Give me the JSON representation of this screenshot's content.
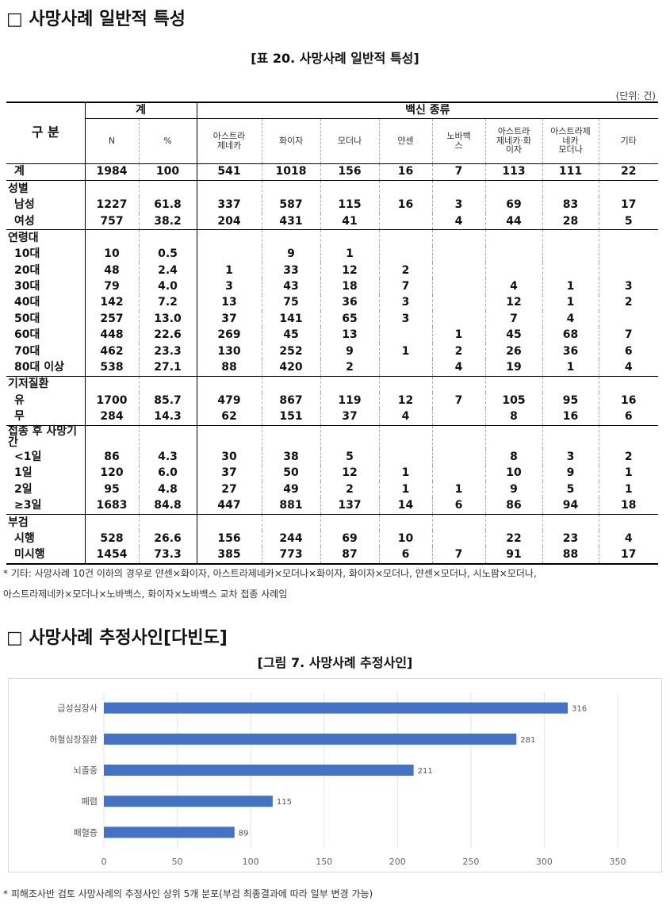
{
  "header": {
    "title": "□ 사망사례 일반적 특성",
    "caption": "[표 20. 사망사례 일반적 특성]",
    "unit": "(단위: 건)"
  },
  "table": {
    "head": {
      "group": "구 분",
      "total": "계",
      "vaccine": "백신 종류",
      "columns": [
        "N",
        "%",
        "아스트라\n제네카",
        "화이자",
        "모더나",
        "얀센",
        "노바백\n스",
        "아스트라\n제네카·화\n이자",
        "아스트라제\n네카\n모더나",
        "기타"
      ]
    },
    "rows": [
      {
        "label": "계",
        "cells": [
          "1984",
          "100",
          "541",
          "1018",
          "156",
          "16",
          "7",
          "113",
          "111",
          "22"
        ]
      },
      {
        "label": "성별"
      },
      {
        "label": "남성",
        "cells": [
          "1227",
          "61.8",
          "337",
          "587",
          "115",
          "16",
          "3",
          "69",
          "83",
          "17"
        ]
      },
      {
        "label": "여성",
        "cells": [
          "757",
          "38.2",
          "204",
          "431",
          "41",
          null,
          "4",
          "44",
          "28",
          "5"
        ]
      },
      {
        "label": "연령대"
      },
      {
        "label": "10대",
        "cells": [
          "10",
          "0.5",
          null,
          "9",
          "1",
          null,
          null,
          null,
          null,
          null
        ]
      },
      {
        "label": "20대",
        "cells": [
          "48",
          "2.4",
          "1",
          "33",
          "12",
          "2",
          null,
          null,
          null,
          null
        ]
      },
      {
        "label": "30대",
        "cells": [
          "79",
          "4.0",
          "3",
          "43",
          "18",
          "7",
          null,
          "4",
          "1",
          "3"
        ]
      },
      {
        "label": "40대",
        "cells": [
          "142",
          "7.2",
          "13",
          "75",
          "36",
          "3",
          null,
          "12",
          "1",
          "2"
        ]
      },
      {
        "label": "50대",
        "cells": [
          "257",
          "13.0",
          "37",
          "141",
          "65",
          "3",
          null,
          "7",
          "4",
          null
        ]
      },
      {
        "label": "60대",
        "cells": [
          "448",
          "22.6",
          "269",
          "45",
          "13",
          null,
          "1",
          "45",
          "68",
          "7"
        ]
      },
      {
        "label": "70대",
        "cells": [
          "462",
          "23.3",
          "130",
          "252",
          "9",
          "1",
          "2",
          "26",
          "36",
          "6"
        ]
      },
      {
        "label": "80대 이상",
        "cells": [
          "538",
          "27.1",
          "88",
          "420",
          "2",
          null,
          "4",
          "19",
          "1",
          "4"
        ]
      },
      {
        "label": "기저질환"
      },
      {
        "label": "유",
        "cells": [
          "1700",
          "85.7",
          "479",
          "867",
          "119",
          "12",
          "7",
          "105",
          "95",
          "16"
        ]
      },
      {
        "label": "무",
        "cells": [
          "284",
          "14.3",
          "62",
          "151",
          "37",
          "4",
          null,
          "8",
          "16",
          "6"
        ]
      },
      {
        "label": "접종 후 사망기간"
      },
      {
        "label": "<1일",
        "cells": [
          "86",
          "4.3",
          "30",
          "38",
          "5",
          null,
          null,
          "8",
          "3",
          "2"
        ]
      },
      {
        "label": "1일",
        "cells": [
          "120",
          "6.0",
          "37",
          "50",
          "12",
          "1",
          null,
          "10",
          "9",
          "1"
        ]
      },
      {
        "label": "2일",
        "cells": [
          "95",
          "4.8",
          "27",
          "49",
          "2",
          "1",
          "1",
          "9",
          "5",
          "1"
        ]
      },
      {
        "label": "≥3일",
        "cells": [
          "1683",
          "84.8",
          "447",
          "881",
          "137",
          "14",
          "6",
          "86",
          "94",
          "18"
        ]
      },
      {
        "label": "부검"
      },
      {
        "label": "시행",
        "cells": [
          "528",
          "26.6",
          "156",
          "244",
          "69",
          "10",
          null,
          "22",
          "23",
          "4"
        ]
      },
      {
        "label": "미시행",
        "cells": [
          "1454",
          "73.3",
          "385",
          "773",
          "87",
          "6",
          "7",
          "91",
          "88",
          "17"
        ]
      }
    ]
  },
  "notes": [
    "* 기타: 사망사례 10건 이하의 경우로 얀센×화이자, 아스트라제네카×모더나×화이자, 화이자×모더나, 얀센×모더나, 시노팜×모더나,",
    "아스트라제네카×모더나×노바백스, 화이자×노바백스 교차 접종 사례임"
  ],
  "section2": {
    "title": "□ 사망사례 추정사인[다빈도]",
    "caption": "[그림 7. 사망사례 추정사인]"
  },
  "chart_data": {
    "type": "hbar",
    "categories": [
      "급성심장사",
      "허혈심장질환",
      "뇌졸중",
      "폐렴",
      "패혈증"
    ],
    "values": [
      316,
      281,
      211,
      115,
      89
    ],
    "color": "#4472c4",
    "xlim": [
      0,
      350
    ],
    "xticks": [
      0,
      50,
      100,
      150,
      200,
      250,
      300,
      350
    ],
    "grid": true
  },
  "footnote": "* 피해조사반 검토 사망사례의 추정사인 상위 5개 분포(부검 최종결과에 따라 일부 변경 가능)"
}
